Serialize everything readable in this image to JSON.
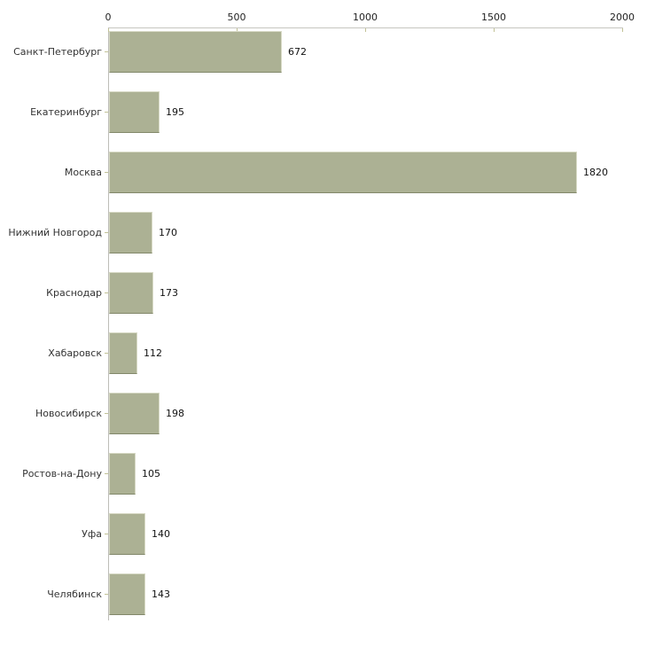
{
  "chart_data": {
    "type": "bar",
    "orientation": "horizontal",
    "categories": [
      "Санкт-Петербург",
      "Екатеринбург",
      "Москва",
      "Нижний Новгород",
      "Краснодар",
      "Хабаровск",
      "Новосибирск",
      "Ростов-на-Дону",
      "Уфа",
      "Челябинск"
    ],
    "values": [
      672,
      195,
      1820,
      170,
      173,
      112,
      198,
      105,
      140,
      143
    ],
    "x_ticks": [
      0,
      500,
      1000,
      1500,
      2000
    ],
    "xlim": [
      0,
      2000
    ],
    "grid": false,
    "legend": false,
    "axis_position": "top",
    "colors": {
      "bar_fill": "#acb194",
      "bar_edge_light": "#d7d9c5",
      "bar_edge_dark": "#82886a",
      "axis_line": "#c6c6bf",
      "tick_mark": "#c2c296",
      "label_text": "#333333",
      "value_text": "#111111",
      "background": "#ffffff"
    }
  }
}
